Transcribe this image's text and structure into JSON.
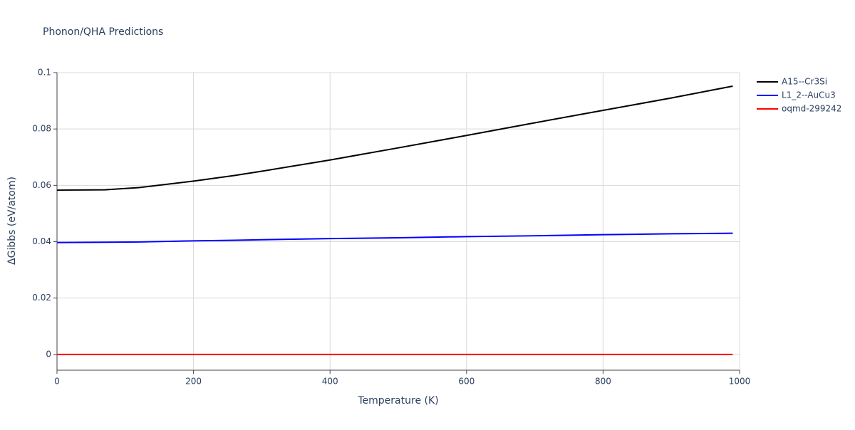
{
  "chart_data": {
    "type": "line",
    "title": "Phonon/QHA Predictions",
    "x_label": "Temperature (K)",
    "y_label": "ΔGibbs (eV/atom)",
    "x": [
      0,
      70,
      120,
      200,
      260,
      300,
      400,
      500,
      600,
      700,
      800,
      900,
      990
    ],
    "series": [
      {
        "name": "A15--Cr3Si",
        "color": "#000000",
        "values": [
          0.0583,
          0.0584,
          0.0592,
          0.0615,
          0.0635,
          0.065,
          0.069,
          0.0733,
          0.0777,
          0.0822,
          0.0866,
          0.091,
          0.0952
        ]
      },
      {
        "name": "L1_2--AuCu3",
        "color": "#0000ff",
        "values": [
          0.0397,
          0.0398,
          0.0399,
          0.0403,
          0.0405,
          0.0407,
          0.0411,
          0.0414,
          0.0418,
          0.0421,
          0.0425,
          0.0428,
          0.043
        ]
      },
      {
        "name": "oqmd-299242",
        "color": "#ff0000",
        "values": [
          0,
          0,
          0,
          0,
          0,
          0,
          0,
          0,
          0,
          0,
          0,
          0,
          0
        ]
      }
    ],
    "xlim": [
      0,
      1000
    ],
    "xticks": [
      0,
      200,
      400,
      600,
      800,
      1000
    ],
    "ylim": [
      -0.0056,
      0.1
    ],
    "yticks": [
      0,
      0.02,
      0.04,
      0.06,
      0.08,
      0.1
    ],
    "grid": true,
    "legend": "right"
  }
}
